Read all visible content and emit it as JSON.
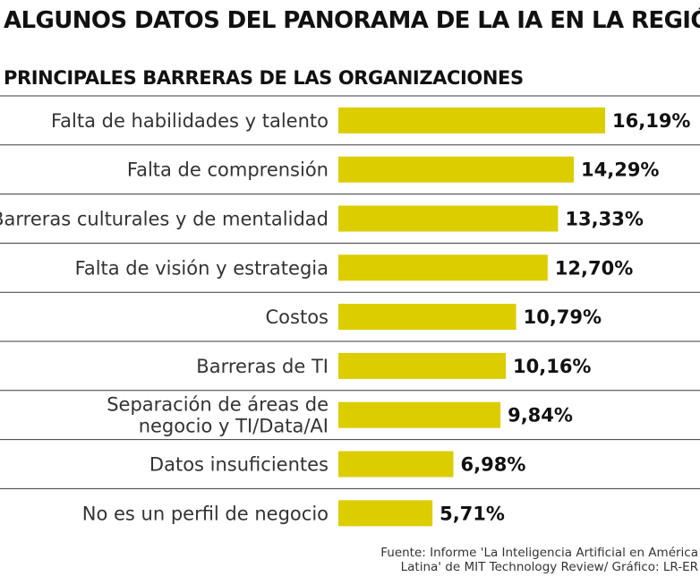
{
  "title": "ALGUNOS DATOS DEL PANORAMA DE LA IA EN LA REGIÓN",
  "subtitle": "PRINCIPALES BARRERAS DE LAS ORGANIZACIONES",
  "source_line1": "Fuente: Informe 'La Inteligencia Artificial en América",
  "source_line2": "Latina' de MIT Technology Review/ Gráfico: LR-ER",
  "colors": {
    "bar": "#dccd00",
    "separator": "#3a3a3a"
  },
  "chart_data": {
    "type": "bar",
    "orientation": "horizontal",
    "title": "PRINCIPALES BARRERAS DE LAS ORGANIZACIONES",
    "categories": [
      "Falta de habilidades y talento",
      "Falta de comprensión",
      "Barreras culturales y de mentalidad",
      "Falta de visión y estrategia",
      "Costos",
      "Barreras de TI",
      "Separación de áreas de negocio y TI/Data/AI",
      "Datos insuficientes",
      "No es un perfil de negocio"
    ],
    "category_lines": [
      [
        "Falta de habilidades y talento"
      ],
      [
        "Falta de comprensión"
      ],
      [
        "Barreras culturales y de mentalidad"
      ],
      [
        "Falta de visión y estrategia"
      ],
      [
        "Costos"
      ],
      [
        "Barreras de TI"
      ],
      [
        "Separación de áreas de",
        "negocio y TI/Data/AI"
      ],
      [
        "Datos insuficientes"
      ],
      [
        "No es un perfil de negocio"
      ]
    ],
    "values": [
      16.19,
      14.29,
      13.33,
      12.7,
      10.79,
      10.16,
      9.84,
      6.98,
      5.71
    ],
    "value_labels": [
      "16,19%",
      "14,29%",
      "13,33%",
      "12,70%",
      "10,79%",
      "10,16%",
      "9,84%",
      "6,98%",
      "5,71%"
    ],
    "unit": "%",
    "grid": false
  }
}
